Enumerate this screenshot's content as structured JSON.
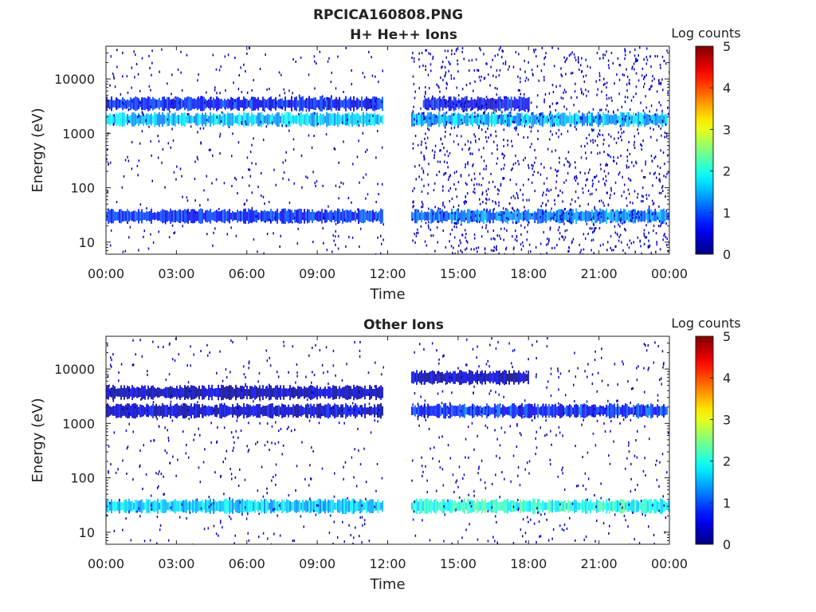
{
  "figure": {
    "title": "RPCICA160808.PNG"
  },
  "chart_data": [
    {
      "type": "heatmap",
      "title": "H+ He++ Ions",
      "xlabel": "Time",
      "ylabel": "Energy (eV)",
      "x_ticks": [
        "00:00",
        "03:00",
        "06:00",
        "09:00",
        "12:00",
        "15:00",
        "18:00",
        "21:00",
        "00:00"
      ],
      "x_range_hours": [
        0,
        24
      ],
      "y_scale": "log",
      "y_ticks": [
        {
          "value": 10,
          "label": "10"
        },
        {
          "value": 100,
          "label": "100"
        },
        {
          "value": 1000,
          "label": "1000"
        },
        {
          "value": 10000,
          "label": "10000"
        }
      ],
      "y_range_ev": [
        6,
        40000
      ],
      "colorbar": {
        "label": "Log counts",
        "range": [
          0,
          5
        ],
        "ticks": [
          "0",
          "1",
          "2",
          "3",
          "4",
          "5"
        ],
        "colormap": "jet"
      },
      "data_gap_hours": [
        11.8,
        13.0
      ],
      "bands": [
        {
          "energy_ev": 30,
          "hours": [
            0,
            11.8
          ],
          "log_counts": 0.8
        },
        {
          "energy_ev": 30,
          "hours": [
            13.0,
            24
          ],
          "log_counts": 1.2
        },
        {
          "energy_ev": 1800,
          "hours": [
            0,
            11.8
          ],
          "log_counts": 1.6
        },
        {
          "energy_ev": 1800,
          "hours": [
            13.0,
            23.9
          ],
          "log_counts": 1.5
        },
        {
          "energy_ev": 3500,
          "hours": [
            0,
            11.8
          ],
          "log_counts": 0.7
        },
        {
          "energy_ev": 3500,
          "hours": [
            13.5,
            18.0
          ],
          "log_counts": 0.6
        }
      ]
    },
    {
      "type": "heatmap",
      "title": "Other Ions",
      "xlabel": "Time",
      "ylabel": "Energy (eV)",
      "x_ticks": [
        "00:00",
        "03:00",
        "06:00",
        "09:00",
        "12:00",
        "15:00",
        "18:00",
        "21:00",
        "00:00"
      ],
      "x_range_hours": [
        0,
        24
      ],
      "y_scale": "log",
      "y_ticks": [
        {
          "value": 10,
          "label": "10"
        },
        {
          "value": 100,
          "label": "100"
        },
        {
          "value": 1000,
          "label": "1000"
        },
        {
          "value": 10000,
          "label": "10000"
        }
      ],
      "y_range_ev": [
        6,
        40000
      ],
      "colorbar": {
        "label": "Log counts",
        "range": [
          0,
          5
        ],
        "ticks": [
          "0",
          "1",
          "2",
          "3",
          "4",
          "5"
        ],
        "colormap": "jet"
      },
      "data_gap_hours": [
        11.8,
        13.0
      ],
      "bands": [
        {
          "energy_ev": 30,
          "hours": [
            0,
            11.8
          ],
          "log_counts": 1.6
        },
        {
          "energy_ev": 30,
          "hours": [
            13.0,
            24
          ],
          "log_counts": 2.0
        },
        {
          "energy_ev": 1700,
          "hours": [
            0,
            11.8
          ],
          "log_counts": 0.4
        },
        {
          "energy_ev": 1700,
          "hours": [
            13.0,
            23.9
          ],
          "log_counts": 0.8
        },
        {
          "energy_ev": 3700,
          "hours": [
            0,
            11.8
          ],
          "log_counts": 0.3
        },
        {
          "energy_ev": 7000,
          "hours": [
            13.0,
            18.0
          ],
          "log_counts": 0.3
        }
      ]
    }
  ]
}
